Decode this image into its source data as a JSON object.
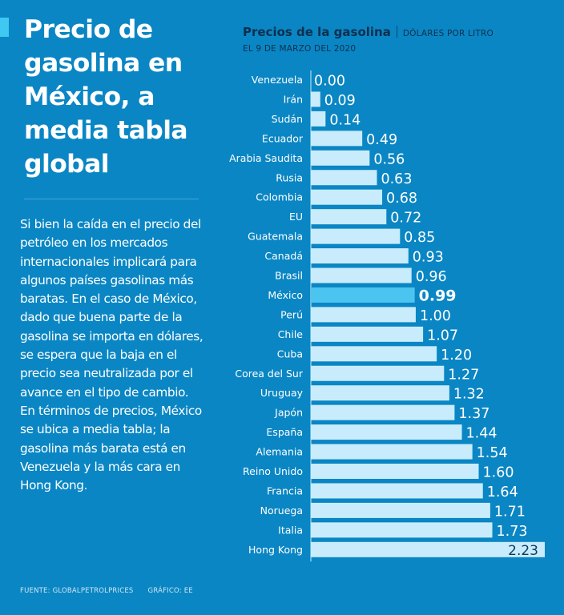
{
  "headline": "Precio de gasolina en México, a media tabla global",
  "body": "Si bien la caída en el precio del petróleo en los mercados internacionales implicará para algunos países gasolinas más baratas. En el caso de México, dado que buena parte de la gasolina se importa en dólares, se espera que la baja en el precio sea neutralizada por el avance en el tipo de cambio. En términos de precios, México se ubica a media tabla; la gasolina más barata está en Venezuela y la más cara en Hong Kong.",
  "footer": {
    "source": "FUENTE: GLOBALPETROLPRICES",
    "credit": "GRÁFICO: EE"
  },
  "colors": {
    "background": "#0a86c4",
    "bar": "#c8ecfb",
    "highlight_bar": "#4cc4f0",
    "title_text": "#0d2f4e",
    "hongkong_label": "#0a3a5e"
  },
  "chart_data": {
    "type": "bar",
    "orientation": "horizontal",
    "title": "Precios de la gasolina",
    "unit": "DÓLARES POR LITRO",
    "subtitle": "EL 9 DE MARZO DEL 2020",
    "highlight": "México",
    "xlim": [
      0,
      2.23
    ],
    "categories": [
      "Venezuela",
      "Irán",
      "Sudán",
      "Ecuador",
      "Arabia Saudita",
      "Rusia",
      "Colombia",
      "EU",
      "Guatemala",
      "Canadá",
      "Brasil",
      "México",
      "Perú",
      "Chile",
      "Cuba",
      "Corea del Sur",
      "Uruguay",
      "Japón",
      "España",
      "Alemania",
      "Reino Unido",
      "Francia",
      "Noruega",
      "Italia",
      "Hong Kong"
    ],
    "values": [
      0.0,
      0.09,
      0.14,
      0.49,
      0.56,
      0.63,
      0.68,
      0.72,
      0.85,
      0.93,
      0.96,
      0.99,
      1.0,
      1.07,
      1.2,
      1.27,
      1.32,
      1.37,
      1.44,
      1.54,
      1.6,
      1.64,
      1.71,
      1.73,
      2.23
    ],
    "labels": [
      "0.00",
      "0.09",
      "0.14",
      "0.49",
      "0.56",
      "0.63",
      "0.68",
      "0.72",
      "0.85",
      "0.93",
      "0.96",
      "0.99",
      "1.00",
      "1.07",
      "1.20",
      "1.27",
      "1.32",
      "1.37",
      "1.44",
      "1.54",
      "1.60",
      "1.64",
      "1.71",
      "1.73",
      "2.23"
    ]
  }
}
